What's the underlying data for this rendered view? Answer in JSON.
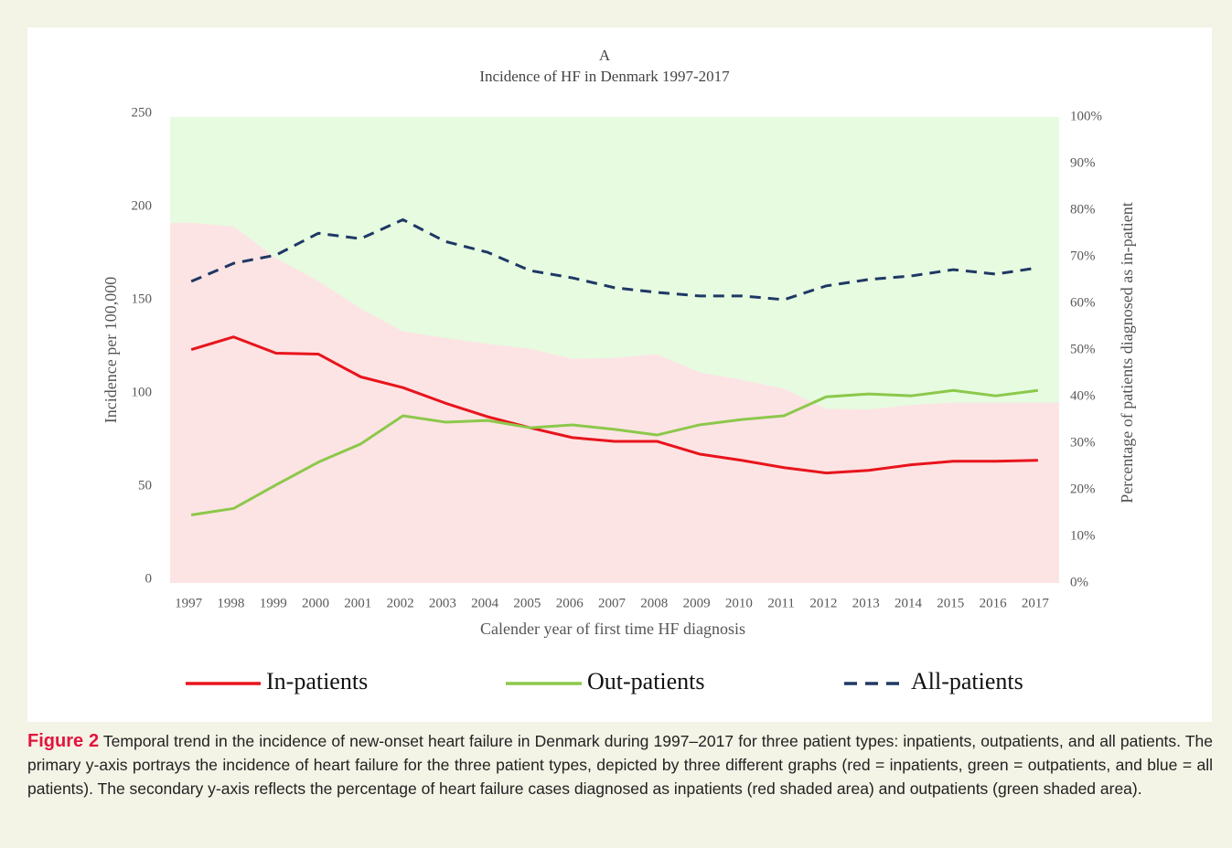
{
  "chart_data": {
    "type": "line",
    "title": "A",
    "subtitle": "Incidence of HF in Denmark 1997-2017",
    "x_label": "Calender year of first time HF diagnosis",
    "y_label": "Incidence per 100,000",
    "y2_label": "Percentage of patients diagnosed as in-patient",
    "categories": [
      "1997",
      "1998",
      "1999",
      "2000",
      "2001",
      "2002",
      "2003",
      "2004",
      "2005",
      "2006",
      "2007",
      "2008",
      "2009",
      "2010",
      "2011",
      "2012",
      "2013",
      "2014",
      "2015",
      "2016",
      "2017"
    ],
    "ylim": [
      0,
      250
    ],
    "yticks": [
      0,
      50,
      100,
      150,
      200,
      250
    ],
    "y2lim": [
      0,
      100
    ],
    "y2ticks": [
      {
        "value": 0,
        "label": "0%"
      },
      {
        "value": 10,
        "label": "10%"
      },
      {
        "value": 20,
        "label": "20%"
      },
      {
        "value": 30,
        "label": "30%"
      },
      {
        "value": 40,
        "label": "40%"
      },
      {
        "value": 50,
        "label": "50%"
      },
      {
        "value": 60,
        "label": "60%"
      },
      {
        "value": 70,
        "label": "70%"
      },
      {
        "value": 80,
        "label": "80%"
      },
      {
        "value": 90,
        "label": "90%"
      },
      {
        "value": 100,
        "label": "100%"
      }
    ],
    "plot_background": "#e6fbe0",
    "legend": "bottom",
    "areas": [
      {
        "color": "#fde4e4",
        "axis": "y2",
        "values": [
          77.3,
          76.5,
          69.7,
          64.8,
          58.9,
          54.0,
          52.6,
          51.3,
          50.3,
          48.1,
          48.3,
          49.1,
          45.2,
          43.6,
          41.7,
          37.4,
          37.2,
          38.2,
          38.7,
          38.7,
          38.7
        ]
      }
    ],
    "series": [
      {
        "name": "In-patients",
        "color": "#e8141c",
        "dash": false,
        "values": [
          125.2,
          132.0,
          123.3,
          122.8,
          110.6,
          104.8,
          96.5,
          89.2,
          83.3,
          78.0,
          76.0,
          76.0,
          69.2,
          65.8,
          61.9,
          59.0,
          60.4,
          63.4,
          65.3,
          65.3,
          65.8
        ]
      },
      {
        "name": "Out-patients",
        "color": "#8cc84b",
        "dash": false,
        "values": [
          36.5,
          40.0,
          52.6,
          64.8,
          74.6,
          89.7,
          86.3,
          87.2,
          83.3,
          84.8,
          82.4,
          79.4,
          84.8,
          87.7,
          89.7,
          99.9,
          101.4,
          100.4,
          103.3,
          100.4,
          103.3
        ]
      },
      {
        "name": "All-patients",
        "color": "#1f3864",
        "dash": true,
        "values": [
          161.8,
          171.5,
          175.9,
          187.6,
          184.7,
          194.9,
          183.2,
          177.4,
          167.6,
          163.7,
          158.4,
          155.9,
          154.0,
          154.0,
          152.0,
          159.4,
          162.8,
          164.7,
          168.1,
          165.7,
          169.1
        ]
      }
    ]
  },
  "caption": {
    "label": "Figure 2",
    "text": "Temporal trend in the incidence of new-onset heart failure in Denmark during 1997–2017 for three patient types: inpatients, outpatients, and all patients. The primary y-axis portrays the incidence of heart failure for the three patient types, depicted by three different graphs (red = inpatients, green = outpatients, and blue = all patients). The secondary y-axis reflects the percentage of heart failure cases diagnosed as inpatients (red shaded area) and outpatients (green shaded area)."
  }
}
